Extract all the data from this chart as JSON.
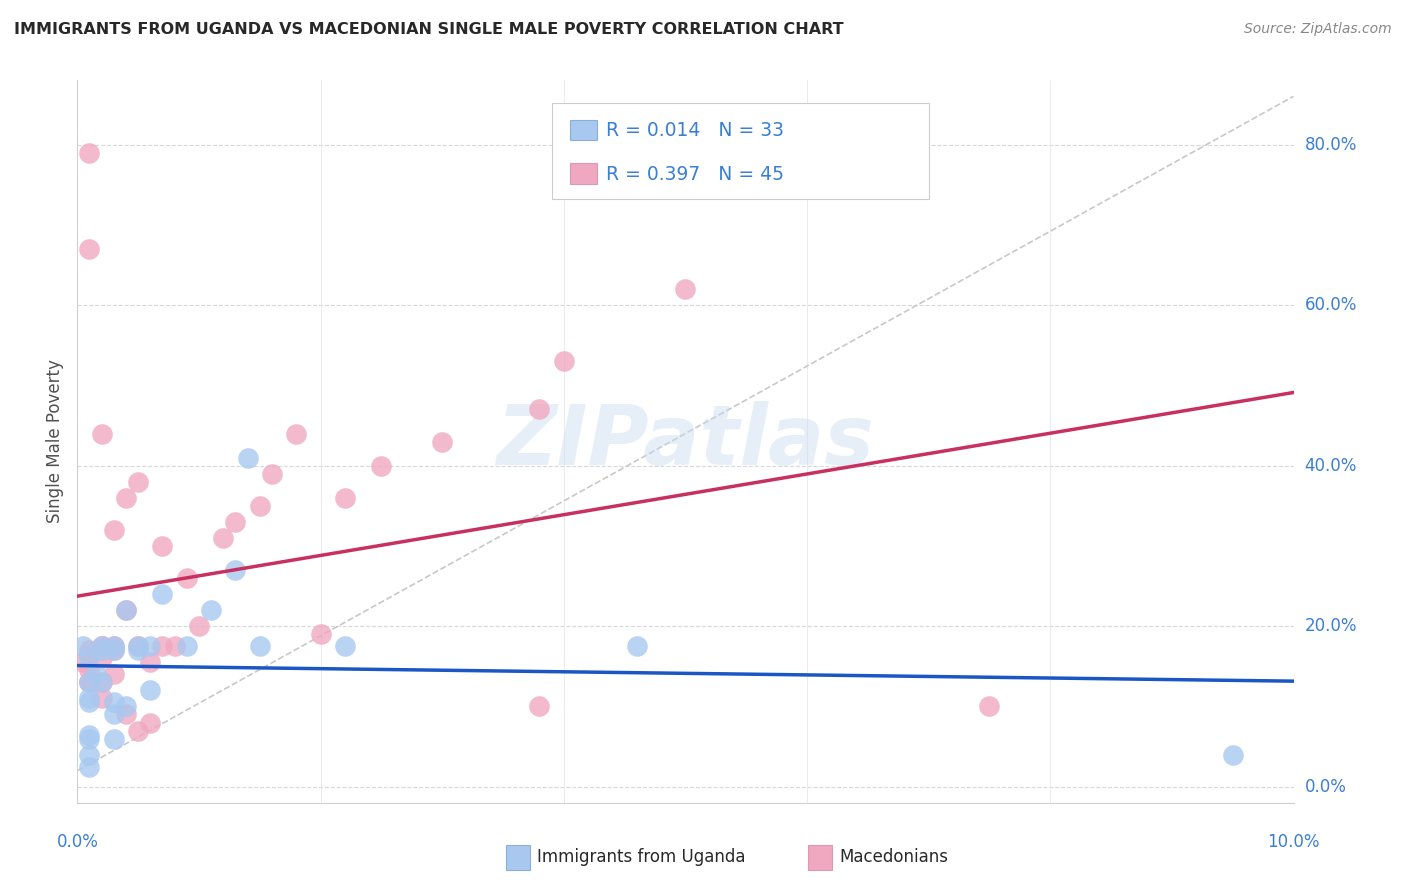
{
  "title": "IMMIGRANTS FROM UGANDA VS MACEDONIAN SINGLE MALE POVERTY CORRELATION CHART",
  "source": "Source: ZipAtlas.com",
  "ylabel": "Single Male Poverty",
  "color_uganda": "#a8c8f0",
  "color_macedonian": "#f0a8c0",
  "color_uganda_line": "#1a56c4",
  "color_macedonian_line": "#c83060",
  "color_diagonal_line": "#c8c8c8",
  "color_grid": "#d8d8d8",
  "watermark": "ZIPatlas",
  "uganda_x": [
    0.0005,
    0.001,
    0.001,
    0.0015,
    0.001,
    0.001,
    0.002,
    0.002,
    0.002,
    0.003,
    0.003,
    0.003,
    0.003,
    0.004,
    0.004,
    0.005,
    0.005,
    0.006,
    0.006,
    0.007,
    0.009,
    0.011,
    0.013,
    0.014,
    0.015,
    0.022,
    0.001,
    0.003,
    0.001,
    0.001,
    0.046,
    0.095,
    0.001
  ],
  "uganda_y": [
    0.175,
    0.16,
    0.11,
    0.14,
    0.065,
    0.06,
    0.17,
    0.13,
    0.175,
    0.175,
    0.17,
    0.06,
    0.105,
    0.22,
    0.1,
    0.175,
    0.17,
    0.175,
    0.12,
    0.24,
    0.175,
    0.22,
    0.27,
    0.41,
    0.175,
    0.175,
    0.04,
    0.09,
    0.105,
    0.025,
    0.175,
    0.04,
    0.13
  ],
  "macedonian_x": [
    0.0005,
    0.001,
    0.001,
    0.001,
    0.001,
    0.002,
    0.002,
    0.002,
    0.002,
    0.003,
    0.003,
    0.003,
    0.004,
    0.004,
    0.005,
    0.005,
    0.006,
    0.007,
    0.008,
    0.009,
    0.01,
    0.012,
    0.013,
    0.015,
    0.016,
    0.018,
    0.02,
    0.022,
    0.025,
    0.03,
    0.038,
    0.04,
    0.05,
    0.038,
    0.001,
    0.001,
    0.002,
    0.003,
    0.004,
    0.005,
    0.006,
    0.007,
    0.075,
    0.001,
    0.002
  ],
  "macedonian_y": [
    0.155,
    0.165,
    0.145,
    0.13,
    0.79,
    0.175,
    0.13,
    0.16,
    0.175,
    0.32,
    0.175,
    0.17,
    0.36,
    0.22,
    0.175,
    0.38,
    0.155,
    0.3,
    0.175,
    0.26,
    0.2,
    0.31,
    0.33,
    0.35,
    0.39,
    0.44,
    0.19,
    0.36,
    0.4,
    0.43,
    0.47,
    0.53,
    0.62,
    0.1,
    0.67,
    0.13,
    0.11,
    0.14,
    0.09,
    0.07,
    0.08,
    0.175,
    0.1,
    0.17,
    0.44
  ],
  "xlim": [
    0.0,
    0.1
  ],
  "ylim": [
    -0.02,
    0.88
  ],
  "yticks": [
    0.0,
    0.2,
    0.4,
    0.6,
    0.8
  ],
  "ytick_labels": [
    "0.0%",
    "20.0%",
    "40.0%",
    "60.0%",
    "80.0%"
  ],
  "xtick_labels_x": [
    0.0,
    0.1
  ],
  "xtick_labels": [
    "0.0%",
    "10.0%"
  ],
  "legend_r1": "R = 0.014",
  "legend_n1": "N = 33",
  "legend_r2": "R = 0.397",
  "legend_n2": "N = 45",
  "label_uganda": "Immigrants from Uganda",
  "label_macedonian": "Macedonians"
}
